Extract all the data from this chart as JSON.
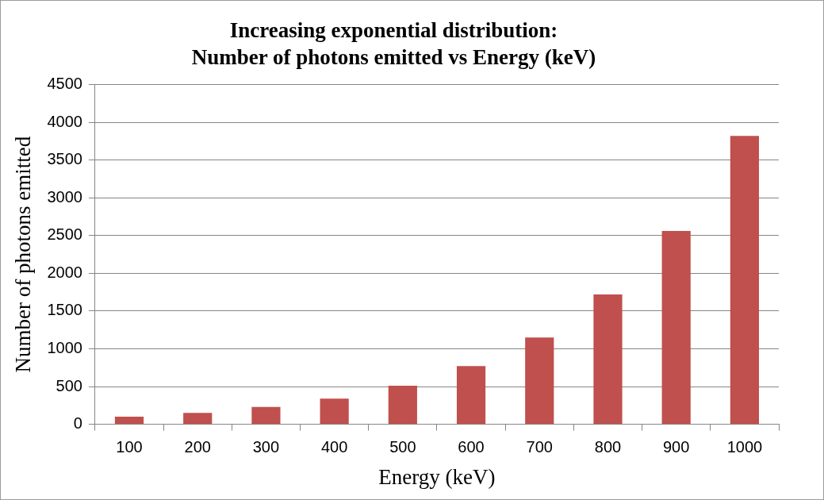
{
  "chart_data": {
    "type": "bar",
    "title": "Increasing exponential distribution:\nNumber of photons emitted vs Energy (keV)",
    "xlabel": "Energy (keV)",
    "ylabel": "Number of photons emitted",
    "categories": [
      "100",
      "200",
      "300",
      "400",
      "500",
      "600",
      "700",
      "800",
      "900",
      "1000"
    ],
    "values": [
      100,
      150,
      230,
      340,
      510,
      770,
      1150,
      1720,
      2560,
      3820
    ],
    "color": "#c0504d",
    "ylim": [
      0,
      4500
    ],
    "yticks": [
      0,
      500,
      1000,
      1500,
      2000,
      2500,
      3000,
      3500,
      4000,
      4500
    ],
    "grid": "y",
    "legend": false
  }
}
